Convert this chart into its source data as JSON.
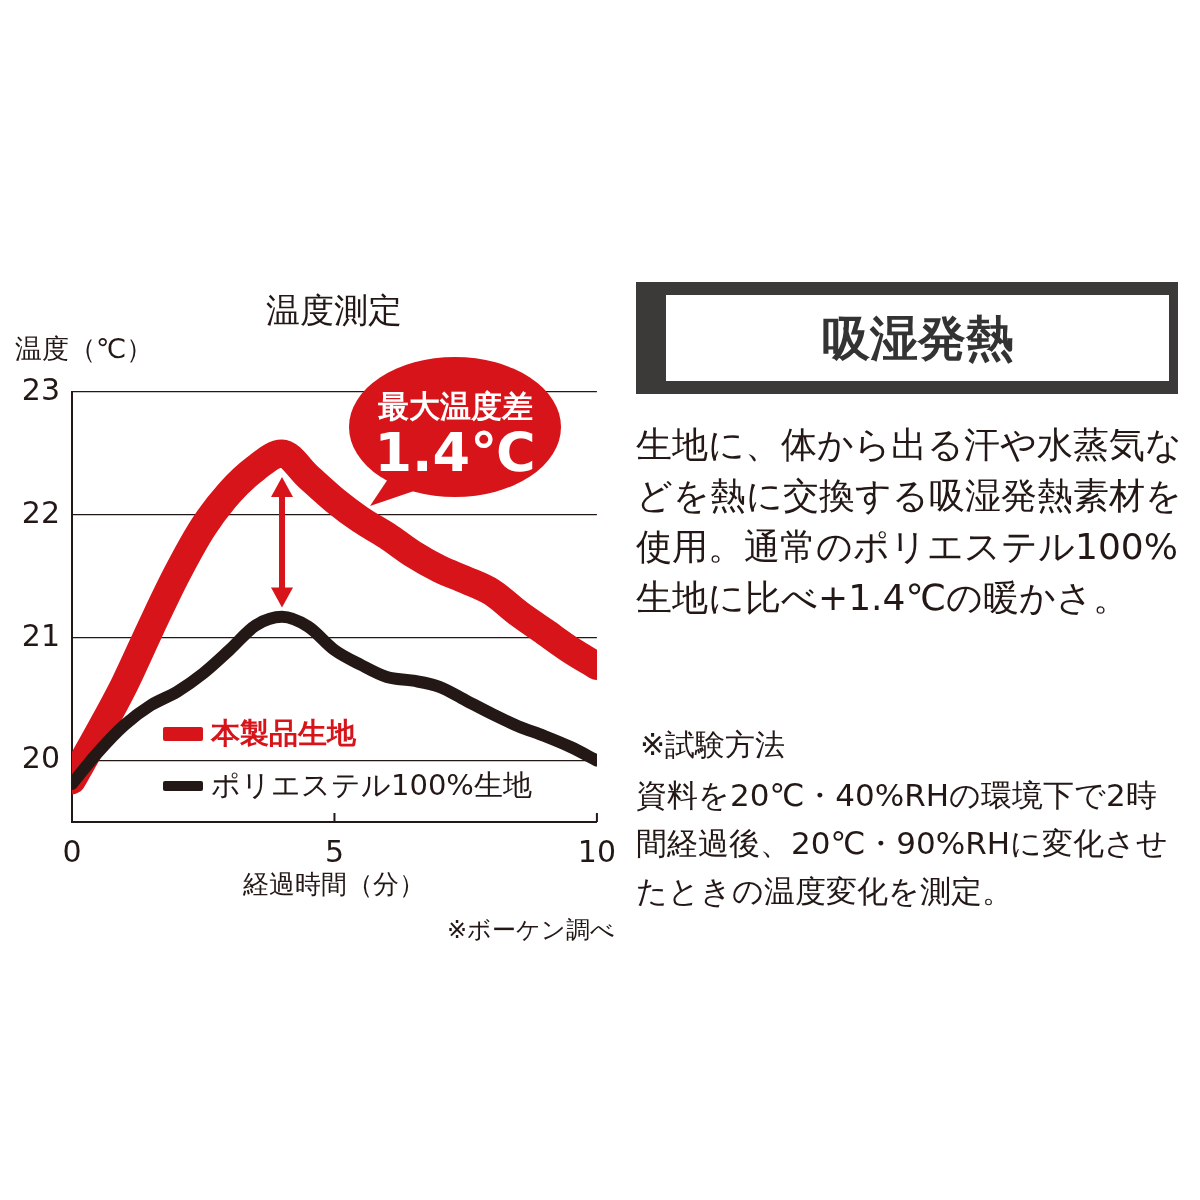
{
  "chart_data": [
    {
      "type": "line",
      "title": "温度測定",
      "xlabel": "経過時間（分）",
      "ylabel": "温度（℃）",
      "x": [
        0,
        0.5,
        1,
        1.5,
        2,
        2.5,
        3,
        3.5,
        4,
        4.5,
        5,
        5.5,
        6,
        6.5,
        7,
        7.5,
        8,
        8.5,
        9,
        9.5,
        10
      ],
      "series": [
        {
          "name": "本製品生地",
          "color": "#d7141a",
          "values": [
            19.84,
            20.22,
            20.62,
            21.08,
            21.52,
            21.9,
            22.18,
            22.38,
            22.5,
            22.31,
            22.12,
            21.96,
            21.83,
            21.68,
            21.56,
            21.47,
            21.37,
            21.2,
            21.05,
            20.9,
            20.77
          ]
        },
        {
          "name": "ポリエステル100%生地",
          "color": "#231815",
          "values": [
            19.81,
            20.07,
            20.29,
            20.45,
            20.56,
            20.71,
            20.9,
            21.1,
            21.17,
            21.09,
            20.9,
            20.78,
            20.68,
            20.65,
            20.6,
            20.49,
            20.38,
            20.28,
            20.2,
            20.11,
            20.0
          ]
        }
      ],
      "xlim": [
        0,
        10
      ],
      "xticks": [
        0,
        5,
        10
      ],
      "ylim": [
        19.5,
        23
      ],
      "yticks": [
        20,
        21,
        22,
        23
      ],
      "grid": "y",
      "legend": "bottom left",
      "annotations": [
        "最大温度差",
        "1.4℃",
        "※ボーケン調べ"
      ]
    },
    {
      "type": "other",
      "title": "吸湿発熱",
      "annotations": [
        "生地に、体から出る汗や水蒸気などを熱に交換する吸湿発熱素材を使用。通常のポリエステル100%生地に比べ+1.4℃の暖かさ。",
        "※試験方法",
        "資料を20℃・40%RHの環境下で2時間経過後、20℃・90%RHに変化させたときの温度変化を測定。"
      ]
    }
  ]
}
